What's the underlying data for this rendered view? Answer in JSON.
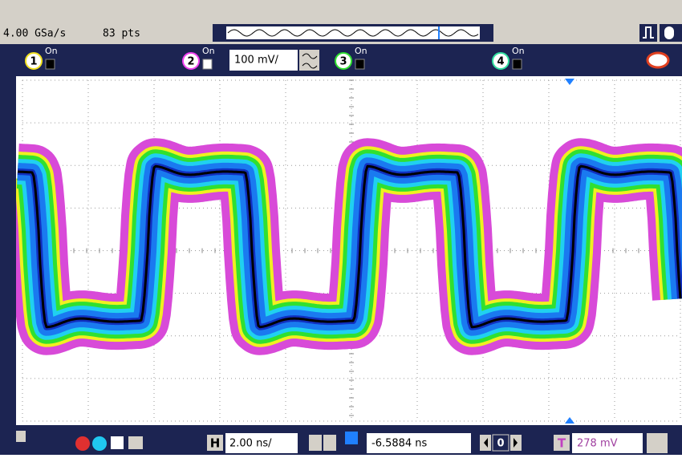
{
  "top": {
    "sample_rate": "4.00 GSa/s",
    "points": "83 pts"
  },
  "channels": [
    {
      "number": "1",
      "state": "On"
    },
    {
      "number": "2",
      "state": "On",
      "scale": "100 mV/"
    },
    {
      "number": "3",
      "state": "On"
    },
    {
      "number": "4",
      "state": "On"
    }
  ],
  "bottom": {
    "horizontal_label": "H",
    "time_scale": "2.00 ns/",
    "delay": "-6.5884 ns",
    "delay_step": "0",
    "trigger_label": "T",
    "trigger_level": "278 mV"
  }
}
